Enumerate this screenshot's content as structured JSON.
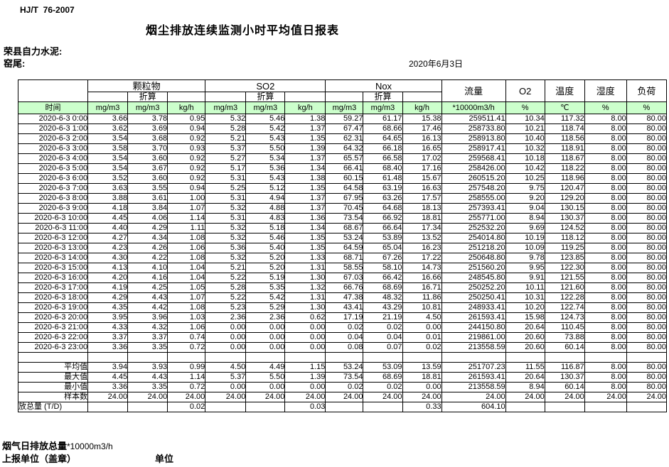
{
  "meta": {
    "standard": "HJ/T  76-2007",
    "title": "烟尘排放连续监测小时平均值日报表",
    "company": "荣县自力水泥:",
    "site": "窑尾:",
    "date": "2020年6月3日"
  },
  "table": {
    "time_label": "时间",
    "converted_label": "折算",
    "groups": [
      "颗粒物",
      "SO2",
      "Nox"
    ],
    "single_cols": [
      "流量",
      "O2",
      "温度",
      "湿度",
      "负荷"
    ],
    "units": [
      "mg/m3",
      "mg/m3",
      "kg/h",
      "mg/m3",
      "mg/m3",
      "kg/h",
      "mg/m3",
      "mg/m3",
      "kg/h",
      "*10000m3/h",
      "%",
      "℃",
      "%",
      "%"
    ],
    "rows": [
      {
        "time": "2020-6-3 0:00",
        "values": [
          "3.66",
          "3.78",
          "0.95",
          "5.32",
          "5.46",
          "1.38",
          "59.27",
          "61.17",
          "15.38",
          "259511.41",
          "10.34",
          "117.32",
          "8.00",
          "80.00"
        ]
      },
      {
        "time": "2020-6-3 1:00",
        "values": [
          "3.62",
          "3.69",
          "0.94",
          "5.28",
          "5.42",
          "1.37",
          "67.47",
          "68.66",
          "17.46",
          "258733.80",
          "10.21",
          "118.74",
          "8.00",
          "80.00"
        ]
      },
      {
        "time": "2020-6-3 2:00",
        "values": [
          "3.54",
          "3.68",
          "0.92",
          "5.21",
          "5.43",
          "1.35",
          "62.31",
          "64.65",
          "16.13",
          "258913.80",
          "10.40",
          "118.56",
          "8.00",
          "80.00"
        ]
      },
      {
        "time": "2020-6-3 3:00",
        "values": [
          "3.58",
          "3.70",
          "0.93",
          "5.37",
          "5.50",
          "1.39",
          "64.32",
          "66.18",
          "16.65",
          "258917.41",
          "10.32",
          "118.91",
          "8.00",
          "80.00"
        ]
      },
      {
        "time": "2020-6-3 4:00",
        "values": [
          "3.54",
          "3.60",
          "0.92",
          "5.27",
          "5.34",
          "1.37",
          "65.57",
          "66.58",
          "17.02",
          "259568.41",
          "10.18",
          "118.67",
          "8.00",
          "80.00"
        ]
      },
      {
        "time": "2020-6-3 5:00",
        "values": [
          "3.54",
          "3.67",
          "0.92",
          "5.17",
          "5.36",
          "1.34",
          "66.41",
          "68.40",
          "17.16",
          "258426.00",
          "10.42",
          "118.22",
          "8.00",
          "80.00"
        ]
      },
      {
        "time": "2020-6-3 6:00",
        "values": [
          "3.52",
          "3.60",
          "0.92",
          "5.31",
          "5.43",
          "1.38",
          "60.15",
          "61.48",
          "15.67",
          "260515.20",
          "10.25",
          "118.96",
          "8.00",
          "80.00"
        ]
      },
      {
        "time": "2020-6-3 7:00",
        "values": [
          "3.63",
          "3.55",
          "0.94",
          "5.25",
          "5.12",
          "1.35",
          "64.58",
          "63.19",
          "16.63",
          "257548.20",
          "9.75",
          "120.47",
          "8.00",
          "80.00"
        ]
      },
      {
        "time": "2020-6-3 8:00",
        "values": [
          "3.88",
          "3.61",
          "1.00",
          "5.31",
          "4.94",
          "1.37",
          "67.95",
          "63.26",
          "17.57",
          "258555.00",
          "9.20",
          "129.20",
          "8.00",
          "80.00"
        ]
      },
      {
        "time": "2020-6-3 9:00",
        "values": [
          "4.18",
          "3.84",
          "1.07",
          "5.32",
          "4.88",
          "1.37",
          "70.45",
          "64.68",
          "18.13",
          "257393.41",
          "9.04",
          "130.15",
          "8.00",
          "80.00"
        ]
      },
      {
        "time": "2020-6-3 10:00",
        "values": [
          "4.45",
          "4.06",
          "1.14",
          "5.31",
          "4.83",
          "1.36",
          "73.54",
          "66.92",
          "18.81",
          "255771.00",
          "8.94",
          "130.37",
          "8.00",
          "80.00"
        ]
      },
      {
        "time": "2020-6-3 11:00",
        "values": [
          "4.40",
          "4.29",
          "1.11",
          "5.32",
          "5.18",
          "1.34",
          "68.67",
          "66.64",
          "17.34",
          "252532.20",
          "9.69",
          "124.52",
          "8.00",
          "80.00"
        ]
      },
      {
        "time": "2020-6-3 12:00",
        "values": [
          "4.27",
          "4.34",
          "1.08",
          "5.32",
          "5.46",
          "1.35",
          "53.24",
          "53.89",
          "13.52",
          "254014.80",
          "10.19",
          "118.12",
          "8.00",
          "80.00"
        ]
      },
      {
        "time": "2020-6-3 13:00",
        "values": [
          "4.23",
          "4.26",
          "1.06",
          "5.36",
          "5.40",
          "1.35",
          "64.59",
          "65.04",
          "16.23",
          "251218.20",
          "10.09",
          "119.25",
          "8.00",
          "80.00"
        ]
      },
      {
        "time": "2020-6-3 14:00",
        "values": [
          "4.30",
          "4.22",
          "1.08",
          "5.32",
          "5.20",
          "1.33",
          "68.71",
          "67.26",
          "17.22",
          "250648.80",
          "9.78",
          "123.85",
          "8.00",
          "80.00"
        ]
      },
      {
        "time": "2020-6-3 15:00",
        "values": [
          "4.13",
          "4.10",
          "1.04",
          "5.21",
          "5.20",
          "1.31",
          "58.55",
          "58.10",
          "14.73",
          "251560.20",
          "9.95",
          "122.30",
          "8.00",
          "80.00"
        ]
      },
      {
        "time": "2020-6-3 16:00",
        "values": [
          "4.20",
          "4.16",
          "1.04",
          "5.22",
          "5.19",
          "1.30",
          "67.03",
          "66.42",
          "16.66",
          "248545.80",
          "9.91",
          "121.55",
          "8.00",
          "80.00"
        ]
      },
      {
        "time": "2020-6-3 17:00",
        "values": [
          "4.19",
          "4.25",
          "1.05",
          "5.28",
          "5.35",
          "1.32",
          "66.76",
          "68.69",
          "16.71",
          "250252.20",
          "10.11",
          "121.60",
          "8.00",
          "80.00"
        ]
      },
      {
        "time": "2020-6-3 18:00",
        "values": [
          "4.29",
          "4.43",
          "1.07",
          "5.22",
          "5.42",
          "1.31",
          "47.38",
          "48.32",
          "11.86",
          "250250.41",
          "10.31",
          "122.28",
          "8.00",
          "80.00"
        ]
      },
      {
        "time": "2020-6-3 19:00",
        "values": [
          "4.35",
          "4.42",
          "1.08",
          "5.23",
          "5.29",
          "1.30",
          "43.41",
          "43.29",
          "10.81",
          "248933.41",
          "10.20",
          "122.74",
          "8.00",
          "80.00"
        ]
      },
      {
        "time": "2020-6-3 20:00",
        "values": [
          "3.95",
          "3.96",
          "1.03",
          "2.36",
          "2.36",
          "0.62",
          "17.19",
          "21.19",
          "4.50",
          "261593.41",
          "15.98",
          "124.73",
          "8.00",
          "80.00"
        ]
      },
      {
        "time": "2020-6-3 21:00",
        "values": [
          "4.33",
          "4.32",
          "1.06",
          "0.00",
          "0.00",
          "0.00",
          "0.02",
          "0.02",
          "0.00",
          "244150.80",
          "20.64",
          "110.45",
          "8.00",
          "80.00"
        ]
      },
      {
        "time": "2020-6-3 22:00",
        "values": [
          "3.37",
          "3.37",
          "0.74",
          "0.00",
          "0.00",
          "0.00",
          "0.04",
          "0.04",
          "0.01",
          "219861.00",
          "20.60",
          "73.88",
          "8.00",
          "80.00"
        ]
      },
      {
        "time": "2020-6-3 23:00",
        "values": [
          "3.36",
          "3.35",
          "0.72",
          "0.00",
          "0.00",
          "0.00",
          "0.08",
          "0.07",
          "0.02",
          "213558.59",
          "20.60",
          "60.14",
          "8.00",
          "80.00"
        ]
      }
    ],
    "summary": [
      {
        "label": "平均值",
        "values": [
          "3.94",
          "3.93",
          "0.99",
          "4.50",
          "4.49",
          "1.15",
          "53.24",
          "53.09",
          "13.59",
          "251707.23",
          "11.55",
          "116.87",
          "8.00",
          "80.00"
        ]
      },
      {
        "label": "最大值",
        "values": [
          "4.45",
          "4.43",
          "1.14",
          "5.37",
          "5.50",
          "1.39",
          "73.54",
          "68.69",
          "18.81",
          "261593.41",
          "20.64",
          "130.37",
          "8.00",
          "80.00"
        ]
      },
      {
        "label": "最小值",
        "values": [
          "3.36",
          "3.35",
          "0.72",
          "0.00",
          "0.00",
          "0.00",
          "0.02",
          "0.02",
          "0.00",
          "213558.59",
          "8.94",
          "60.14",
          "8.00",
          "80.00"
        ]
      },
      {
        "label": "样本数",
        "values": [
          "24.00",
          "24.00",
          "24.00",
          "24.00",
          "24.00",
          "24.00",
          "24.00",
          "24.00",
          "24.00",
          "24.00",
          "24.00",
          "24.00",
          "24.00",
          "24.00"
        ]
      },
      {
        "label": "日排放总量 (T/D)",
        "values": [
          "",
          "",
          "0.02",
          "",
          "",
          "0.03",
          "",
          "",
          "0.33",
          "604.10",
          "",
          "",
          "",
          ""
        ]
      }
    ]
  },
  "footer": {
    "flue_total_prefix": "烟气日排放总量",
    "flue_total_unit": "*10000m3/h",
    "report_unit": "上报单位（盖章）",
    "unit_label": "单位"
  },
  "colors": {
    "header_green": "#ccffcc",
    "border": "#000000"
  }
}
